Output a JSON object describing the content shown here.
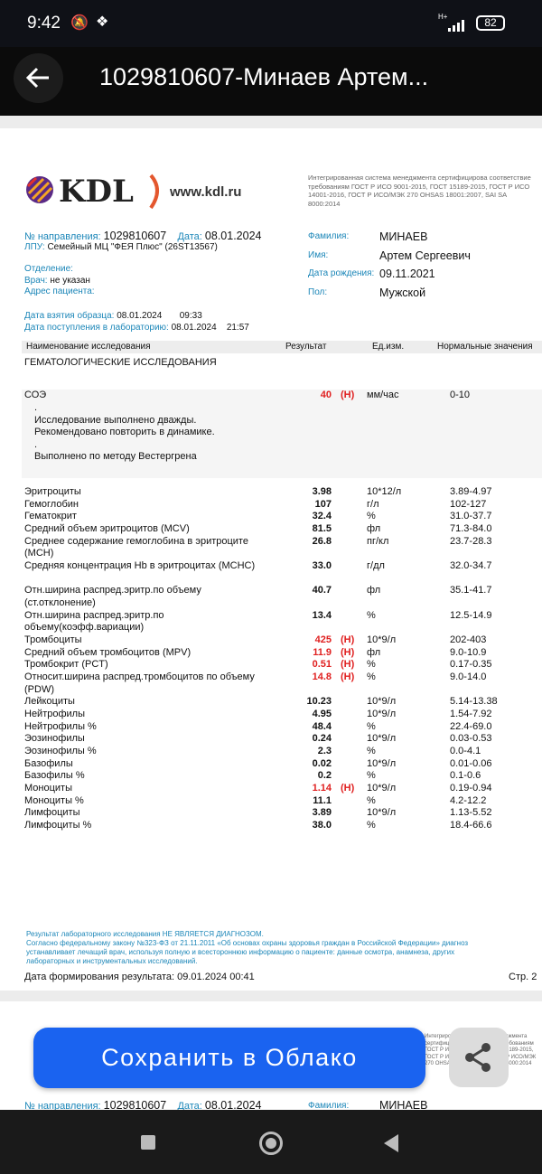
{
  "status_bar": {
    "time": "9:42",
    "network": "H+",
    "battery": "82"
  },
  "app_bar": {
    "title": "1029810607-Минаев Артем..."
  },
  "report": {
    "logo_text": "KDL",
    "site": "www.kdl.ru",
    "cert_text": [
      "Интегрированная система менеджмента сертифицирова",
      "соответствие требованиям ГОСТ Р ИСО 9001-2015, ГОСТ",
      "15189-2015, ГОСТ Р ИСО 14001-2016, ГОСТ Р ИСО/МЭК 270",
      "OHSAS 18001:2007, SAI SA 8000:2014"
    ],
    "referral_label": "№ направления:",
    "referral": "1029810607",
    "date_label": "Дата:",
    "date": "08.01.2024",
    "lpu_label": "ЛПУ:",
    "lpu": "Семейный МЦ \"ФЕЯ Плюс\" (26ST13567)",
    "department_label": "Отделение:",
    "doctor_label": "Врач:",
    "doctor": "не указан",
    "address_label": "Адрес пациента:",
    "sample_date_label": "Дата взятия образца:",
    "sample_date": "08.01.2024",
    "sample_time": "09:33",
    "lab_date_label": "Дата поступления в лабораторию:",
    "lab_date": "08.01.2024",
    "lab_time": "21:57",
    "surname_label": "Фамилия:",
    "surname": "МИНАЕВ",
    "name_label": "Имя:",
    "name": "Артем Сергеевич",
    "dob_label": "Дата рождения:",
    "dob": "09.11.2021",
    "sex_label": "Пол:",
    "sex": "Мужской",
    "columns": [
      "Наименование исследования",
      "Результат",
      "Ед.изм.",
      "Нормальные значения"
    ],
    "section": "ГЕМАТОЛОГИЧЕСКИЕ ИССЛЕДОВАНИЯ",
    "esr": {
      "name": "СОЭ",
      "result": "40",
      "flag": "(H)",
      "unit": "мм/час",
      "norm": "0-10",
      "comments": [
        ".",
        "Исследование выполнено дважды.",
        "Рекомендовано повторить в динамике.",
        ".",
        "Выполнено по методу Вестергрена"
      ]
    },
    "rows": [
      {
        "name": "Эритроциты",
        "result": "3.98",
        "flag": "",
        "unit": "10*12/л",
        "norm": "3.89-4.97"
      },
      {
        "name": "Гемоглобин",
        "result": "107",
        "flag": "",
        "unit": "г/л",
        "norm": "102-127"
      },
      {
        "name": "Гематокрит",
        "result": "32.4",
        "flag": "",
        "unit": "%",
        "norm": "31.0-37.7"
      },
      {
        "name": "Средний объем эритроцитов (MCV)",
        "result": "81.5",
        "flag": "",
        "unit": "фл",
        "norm": "71.3-84.0"
      },
      {
        "name": "Среднее содержание гемоглобина в эритроците (MCH)",
        "result": "26.8",
        "flag": "",
        "unit": "пг/кл",
        "norm": "23.7-28.3",
        "lines": 2
      },
      {
        "name": "Средняя концентрация Hb в эритроцитах (MCHC)",
        "result": "33.0",
        "flag": "",
        "unit": "г/дл",
        "norm": "32.0-34.7",
        "lines": 2
      },
      {
        "name": "Отн.ширина распред.эритр.по объему (ст.отклонение)",
        "result": "40.7",
        "flag": "",
        "unit": "фл",
        "norm": "35.1-41.7",
        "lines": 2
      },
      {
        "name": "Отн.ширина распред.эритр.по объему(коэфф.вариации)",
        "result": "13.4",
        "flag": "",
        "unit": "%",
        "norm": "12.5-14.9",
        "lines": 2
      },
      {
        "name": "Тромбоциты",
        "result": "425",
        "flag": "(H)",
        "unit": "10*9/л",
        "norm": "202-403"
      },
      {
        "name": "Средний объем тромбоцитов (MPV)",
        "result": "11.9",
        "flag": "(H)",
        "unit": "фл",
        "norm": "9.0-10.9"
      },
      {
        "name": "Тромбокрит (PCT)",
        "result": "0.51",
        "flag": "(H)",
        "unit": "%",
        "norm": "0.17-0.35"
      },
      {
        "name": "Относит.ширина распред.тромбоцитов по объему (PDW)",
        "result": "14.8",
        "flag": "(H)",
        "unit": "%",
        "norm": "9.0-14.0",
        "lines": 2
      },
      {
        "name": "Лейкоциты",
        "result": "10.23",
        "flag": "",
        "unit": "10*9/л",
        "norm": "5.14-13.38"
      },
      {
        "name": "Нейтрофилы",
        "result": "4.95",
        "flag": "",
        "unit": "10*9/л",
        "norm": "1.54-7.92"
      },
      {
        "name": "Нейтрофилы %",
        "result": "48.4",
        "flag": "",
        "unit": "%",
        "norm": "22.4-69.0"
      },
      {
        "name": "Эозинофилы",
        "result": "0.24",
        "flag": "",
        "unit": "10*9/л",
        "norm": "0.03-0.53"
      },
      {
        "name": "Эозинофилы %",
        "result": "2.3",
        "flag": "",
        "unit": "%",
        "norm": "0.0-4.1"
      },
      {
        "name": "Базофилы",
        "result": "0.02",
        "flag": "",
        "unit": "10*9/л",
        "norm": "0.01-0.06"
      },
      {
        "name": "Базофилы %",
        "result": "0.2",
        "flag": "",
        "unit": "%",
        "norm": "0.1-0.6"
      },
      {
        "name": "Моноциты",
        "result": "1.14",
        "flag": "(H)",
        "unit": "10*9/л",
        "norm": "0.19-0.94"
      },
      {
        "name": "Моноциты %",
        "result": "11.1",
        "flag": "",
        "unit": "%",
        "norm": "4.2-12.2"
      },
      {
        "name": "Лимфоциты",
        "result": "3.89",
        "flag": "",
        "unit": "10*9/л",
        "norm": "1.13-5.52"
      },
      {
        "name": "Лимфоциты %",
        "result": "38.0",
        "flag": "",
        "unit": "%",
        "norm": "18.4-66.6"
      }
    ],
    "disclaimer": [
      "Результат лабораторного исследования НЕ ЯВЛЯЕТСЯ ДИАГНОЗОМ.",
      "Согласно федеральному закону №323-ФЗ от 21.11.2011 «Об основах охраны здоровья граждан в Российской Федерации» диагноз",
      "устанавливает лечащий врач, используя полную и всестороннюю информацию о пациенте: данные осмотра, анамнеза, других",
      "лабораторных и инструментальных исследований."
    ],
    "generated_label": "Дата формирования результата:",
    "generated": "09.01.2024 00:41",
    "page": "Стр. 2"
  },
  "actions": {
    "save_cloud": "Сохранить в Облако",
    "share_icon": "share-icon"
  },
  "colors": {
    "accent": "#1a63f0",
    "label_cyan": "#1b86b8",
    "high": "#e02020"
  }
}
